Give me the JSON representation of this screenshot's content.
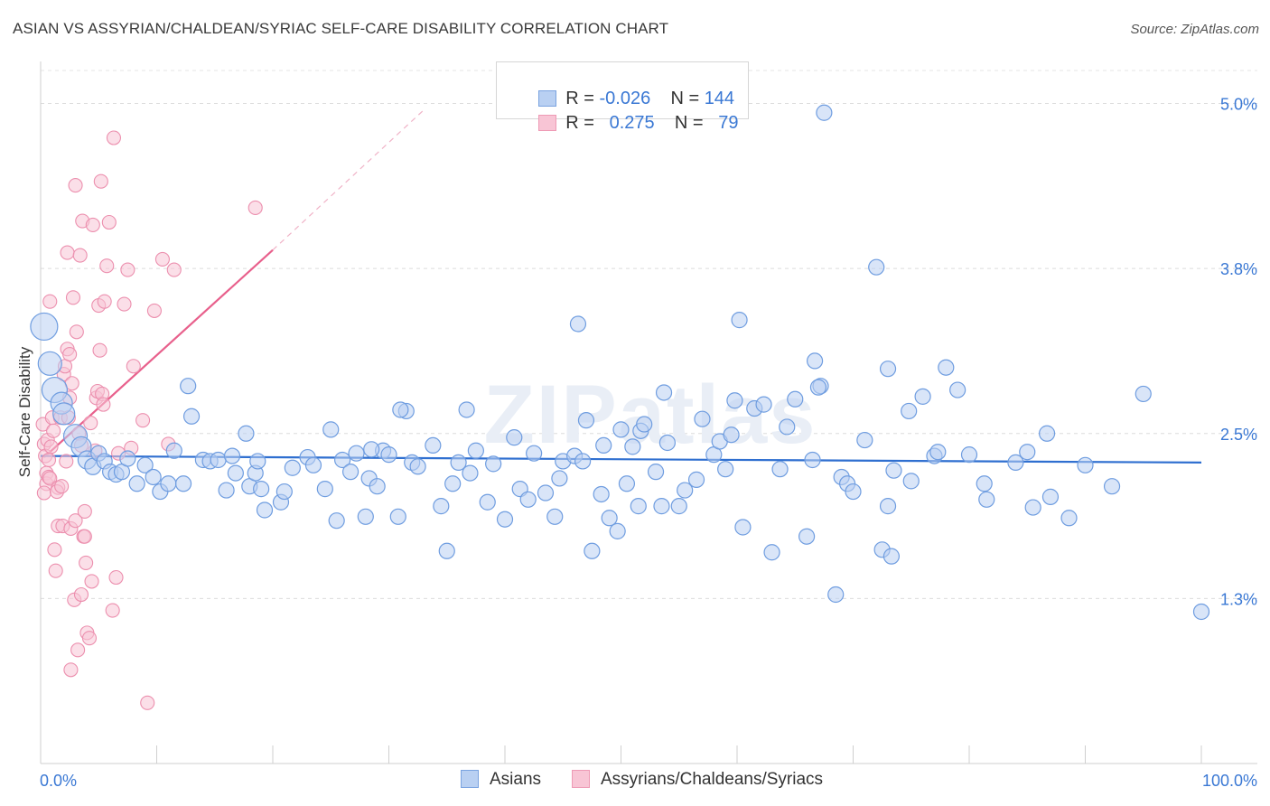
{
  "header": {
    "title": "ASIAN VS ASSYRIAN/CHALDEAN/SYRIAC SELF-CARE DISABILITY CORRELATION CHART",
    "source": "Source: ZipAtlas.com"
  },
  "watermark": "ZIPatlas",
  "legend": {
    "rows": [
      {
        "r_label": "R =",
        "r_value": "-0.026",
        "n_label": "N =",
        "n_value": "144"
      },
      {
        "r_label": "R =",
        "r_value": "0.275",
        "n_label": "N =",
        "n_value": "79"
      }
    ]
  },
  "bottom_legend": {
    "items": [
      "Asians",
      "Assyrians/Chaldeans/Syriacs"
    ]
  },
  "colors": {
    "blue_fill": "#b9d0f2",
    "blue_stroke": "#6f9de0",
    "blue_line": "#2f6fd0",
    "pink_fill": "#f8c5d5",
    "pink_stroke": "#ec8fae",
    "pink_line": "#e8608c",
    "axis_label": "#3a78d4"
  },
  "chart_data": {
    "type": "scatter",
    "title": "ASIAN VS ASSYRIAN/CHALDEAN/SYRIAC SELF-CARE DISABILITY CORRELATION CHART",
    "xlabel": "",
    "ylabel": "Self-Care Disability",
    "xlim": [
      0,
      100
    ],
    "ylim": [
      0,
      5.25
    ],
    "x_tick_labels": [
      "0.0%",
      "100.0%"
    ],
    "y_ticks": [
      1.25,
      2.5,
      3.75,
      5.0
    ],
    "y_tick_labels": [
      "1.3%",
      "2.5%",
      "3.8%",
      "5.0%"
    ],
    "grid": true,
    "legend_position": "top-center",
    "series": [
      {
        "name": "Asians",
        "R": -0.026,
        "N": 144,
        "trend": {
          "x": [
            0,
            100
          ],
          "y": [
            2.33,
            2.28
          ]
        },
        "points": [
          [
            0.3,
            3.31
          ],
          [
            0.8,
            3.03
          ],
          [
            1.2,
            2.83
          ],
          [
            1.8,
            2.73
          ],
          [
            2.0,
            2.65
          ],
          [
            3.0,
            2.48
          ],
          [
            3.5,
            2.4
          ],
          [
            4.0,
            2.3
          ],
          [
            4.5,
            2.25
          ],
          [
            5.0,
            2.35
          ],
          [
            5.5,
            2.29
          ],
          [
            6.0,
            2.21
          ],
          [
            6.5,
            2.19
          ],
          [
            7.0,
            2.21
          ],
          [
            7.5,
            2.31
          ],
          [
            8.3,
            2.12
          ],
          [
            9.0,
            2.26
          ],
          [
            9.7,
            2.17
          ],
          [
            10.3,
            2.06
          ],
          [
            11.0,
            2.12
          ],
          [
            11.5,
            2.37
          ],
          [
            12.3,
            2.12
          ],
          [
            13.0,
            2.63
          ],
          [
            12.7,
            2.86
          ],
          [
            14.0,
            2.3
          ],
          [
            14.6,
            2.29
          ],
          [
            15.3,
            2.3
          ],
          [
            16.0,
            2.07
          ],
          [
            16.5,
            2.33
          ],
          [
            16.8,
            2.2
          ],
          [
            18.0,
            2.1
          ],
          [
            18.5,
            2.2
          ],
          [
            17.7,
            2.5
          ],
          [
            18.7,
            2.29
          ],
          [
            19.3,
            1.92
          ],
          [
            19.0,
            2.08
          ],
          [
            20.7,
            1.98
          ],
          [
            21.0,
            2.06
          ],
          [
            21.7,
            2.24
          ],
          [
            23.0,
            2.32
          ],
          [
            23.5,
            2.26
          ],
          [
            24.5,
            2.08
          ],
          [
            25.0,
            2.53
          ],
          [
            25.5,
            1.84
          ],
          [
            26.0,
            2.3
          ],
          [
            26.7,
            2.21
          ],
          [
            27.2,
            2.35
          ],
          [
            28.0,
            1.87
          ],
          [
            28.3,
            2.16
          ],
          [
            29.0,
            2.1
          ],
          [
            29.5,
            2.37
          ],
          [
            30.0,
            2.34
          ],
          [
            28.5,
            2.38
          ],
          [
            30.8,
            1.87
          ],
          [
            31.5,
            2.67
          ],
          [
            31.0,
            2.68
          ],
          [
            32.0,
            2.28
          ],
          [
            32.5,
            2.25
          ],
          [
            33.8,
            2.41
          ],
          [
            34.5,
            1.95
          ],
          [
            35.0,
            1.61
          ],
          [
            36.0,
            2.28
          ],
          [
            35.5,
            2.12
          ],
          [
            36.7,
            2.68
          ],
          [
            37.0,
            2.2
          ],
          [
            37.5,
            2.37
          ],
          [
            38.5,
            1.98
          ],
          [
            39.0,
            2.27
          ],
          [
            40.0,
            1.85
          ],
          [
            40.8,
            2.47
          ],
          [
            41.3,
            2.08
          ],
          [
            42.0,
            2.0
          ],
          [
            42.5,
            2.35
          ],
          [
            43.5,
            2.05
          ],
          [
            44.3,
            1.87
          ],
          [
            44.7,
            2.16
          ],
          [
            45.0,
            2.29
          ],
          [
            46.0,
            2.33
          ],
          [
            46.7,
            2.29
          ],
          [
            47.0,
            2.6
          ],
          [
            46.3,
            3.33
          ],
          [
            47.5,
            1.61
          ],
          [
            48.3,
            2.04
          ],
          [
            48.5,
            2.41
          ],
          [
            49.0,
            1.86
          ],
          [
            50.0,
            2.53
          ],
          [
            49.7,
            1.76
          ],
          [
            50.5,
            2.12
          ],
          [
            51.0,
            2.4
          ],
          [
            51.5,
            1.95
          ],
          [
            51.7,
            2.52
          ],
          [
            52.0,
            2.57
          ],
          [
            53.0,
            2.21
          ],
          [
            53.5,
            1.95
          ],
          [
            54.0,
            2.43
          ],
          [
            53.7,
            2.81
          ],
          [
            55.0,
            1.95
          ],
          [
            55.5,
            2.07
          ],
          [
            57.0,
            2.61
          ],
          [
            56.5,
            2.15
          ],
          [
            58.0,
            2.34
          ],
          [
            58.5,
            2.44
          ],
          [
            59.0,
            2.23
          ],
          [
            59.5,
            2.49
          ],
          [
            59.8,
            2.75
          ],
          [
            60.5,
            1.79
          ],
          [
            60.2,
            3.36
          ],
          [
            61.5,
            2.69
          ],
          [
            62.3,
            2.72
          ],
          [
            63.0,
            1.6
          ],
          [
            63.7,
            2.23
          ],
          [
            64.3,
            2.55
          ],
          [
            65.0,
            2.76
          ],
          [
            66.5,
            2.3
          ],
          [
            66.7,
            3.05
          ],
          [
            67.2,
            2.86
          ],
          [
            67.0,
            2.85
          ],
          [
            68.5,
            1.28
          ],
          [
            69.0,
            2.17
          ],
          [
            69.5,
            2.12
          ],
          [
            72.0,
            3.76
          ],
          [
            71.0,
            2.45
          ],
          [
            72.5,
            1.62
          ],
          [
            73.0,
            1.95
          ],
          [
            73.5,
            2.22
          ],
          [
            73.3,
            1.57
          ],
          [
            75.0,
            2.14
          ],
          [
            74.8,
            2.67
          ],
          [
            76.0,
            2.78
          ],
          [
            77.0,
            2.33
          ],
          [
            78.0,
            3.0
          ],
          [
            77.3,
            2.36
          ],
          [
            79.0,
            2.83
          ],
          [
            80.0,
            2.34
          ],
          [
            81.3,
            2.12
          ],
          [
            81.5,
            2.0
          ],
          [
            84.0,
            2.28
          ],
          [
            85.0,
            2.36
          ],
          [
            85.5,
            1.94
          ],
          [
            86.7,
            2.5
          ],
          [
            87.0,
            2.02
          ],
          [
            90.0,
            2.26
          ],
          [
            92.3,
            2.1
          ],
          [
            67.5,
            4.93
          ],
          [
            88.6,
            1.86
          ],
          [
            95.0,
            2.8
          ],
          [
            100.0,
            1.15
          ],
          [
            70.0,
            2.06
          ],
          [
            66.0,
            1.72
          ],
          [
            73.0,
            2.99
          ]
        ],
        "point_sizes": "mostly small; a few large points near x=0"
      },
      {
        "name": "Assyrians/Chaldeans/Syriacs",
        "R": 0.275,
        "N": 79,
        "trend": {
          "x": [
            0.3,
            20.0
          ],
          "y": [
            2.32,
            3.89
          ]
        },
        "trend_dashed_extension": {
          "x": [
            20.0,
            33.0
          ],
          "y": [
            3.89,
            4.95
          ]
        },
        "points": [
          [
            0.2,
            2.57
          ],
          [
            0.3,
            2.42
          ],
          [
            0.4,
            2.33
          ],
          [
            0.5,
            2.2
          ],
          [
            0.5,
            2.12
          ],
          [
            0.6,
            2.45
          ],
          [
            0.7,
            2.3
          ],
          [
            0.7,
            2.17
          ],
          [
            0.8,
            2.16
          ],
          [
            0.9,
            2.4
          ],
          [
            0.3,
            2.05
          ],
          [
            1.0,
            2.62
          ],
          [
            1.1,
            2.52
          ],
          [
            0.8,
            3.5
          ],
          [
            1.5,
            2.09
          ],
          [
            1.2,
            1.62
          ],
          [
            1.3,
            1.46
          ],
          [
            1.4,
            2.06
          ],
          [
            1.5,
            1.8
          ],
          [
            1.7,
            2.62
          ],
          [
            1.8,
            2.1
          ],
          [
            1.9,
            1.8
          ],
          [
            2.0,
            2.95
          ],
          [
            2.2,
            2.29
          ],
          [
            2.1,
            3.01
          ],
          [
            2.3,
            3.14
          ],
          [
            2.5,
            2.77
          ],
          [
            2.6,
            1.78
          ],
          [
            2.7,
            2.88
          ],
          [
            2.8,
            3.53
          ],
          [
            3.0,
            1.84
          ],
          [
            2.4,
            2.62
          ],
          [
            2.3,
            3.87
          ],
          [
            2.5,
            3.1
          ],
          [
            3.1,
            3.27
          ],
          [
            3.0,
            4.38
          ],
          [
            2.9,
            1.24
          ],
          [
            3.2,
            0.86
          ],
          [
            3.3,
            2.5
          ],
          [
            3.5,
            2.41
          ],
          [
            3.4,
            3.85
          ],
          [
            3.6,
            4.11
          ],
          [
            3.7,
            1.72
          ],
          [
            3.8,
            1.91
          ],
          [
            3.5,
            1.28
          ],
          [
            3.8,
            1.72
          ],
          [
            3.9,
            1.52
          ],
          [
            4.0,
            0.99
          ],
          [
            4.2,
            0.95
          ],
          [
            4.3,
            2.58
          ],
          [
            4.4,
            1.38
          ],
          [
            4.5,
            4.08
          ],
          [
            4.7,
            2.37
          ],
          [
            4.8,
            2.77
          ],
          [
            5.0,
            3.47
          ],
          [
            5.1,
            3.13
          ],
          [
            4.9,
            2.82
          ],
          [
            5.2,
            4.41
          ],
          [
            5.3,
            2.8
          ],
          [
            5.4,
            2.72
          ],
          [
            5.5,
            3.5
          ],
          [
            5.7,
            3.77
          ],
          [
            5.9,
            4.1
          ],
          [
            6.2,
            1.16
          ],
          [
            6.3,
            4.74
          ],
          [
            6.5,
            1.41
          ],
          [
            6.7,
            2.35
          ],
          [
            7.2,
            3.48
          ],
          [
            7.5,
            3.74
          ],
          [
            7.8,
            2.39
          ],
          [
            8.0,
            3.01
          ],
          [
            8.8,
            2.6
          ],
          [
            9.2,
            0.46
          ],
          [
            9.8,
            3.43
          ],
          [
            10.5,
            3.82
          ],
          [
            11.0,
            2.42
          ],
          [
            11.5,
            3.74
          ],
          [
            18.5,
            4.21
          ],
          [
            2.6,
            0.71
          ]
        ],
        "point_sizes": "small"
      }
    ]
  }
}
